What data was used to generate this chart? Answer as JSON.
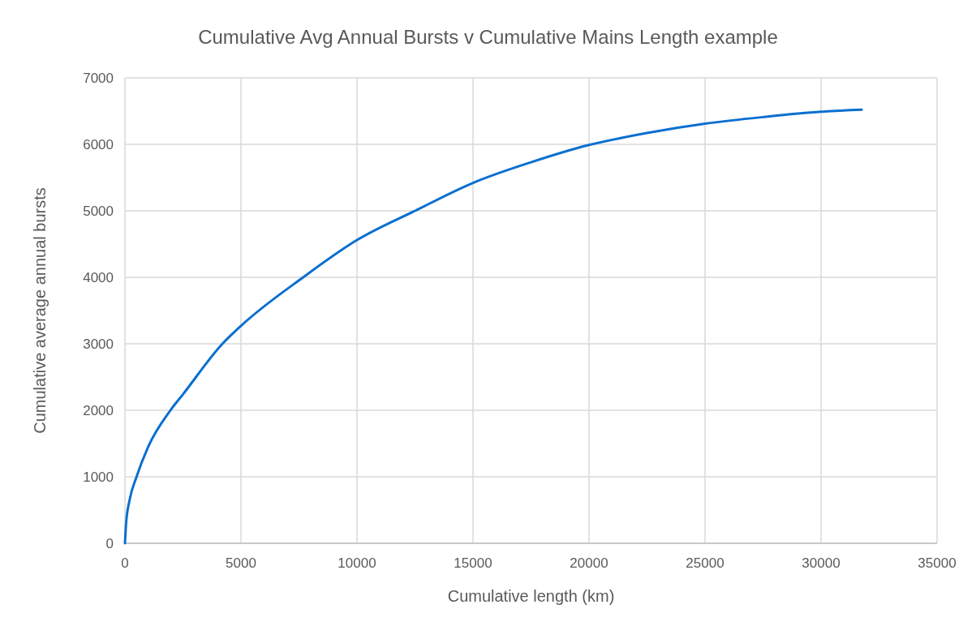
{
  "chart_data": {
    "type": "line",
    "title": "Cumulative Avg Annual Bursts v Cumulative Mains Length example",
    "xlabel": "Cumulative length (km)",
    "ylabel": "Cumulative average annual bursts",
    "series": [
      {
        "color": "#0a6fd0",
        "x": [
          0,
          50,
          200,
          500,
          1000,
          1960,
          2500,
          4200,
          5000,
          7680,
          10000,
          12500,
          15000,
          17500,
          20000,
          22500,
          25000,
          27500,
          30000,
          31750
        ],
        "values": [
          0,
          300,
          650,
          1000,
          1450,
          2000,
          2240,
          3000,
          3270,
          4000,
          4560,
          5000,
          5420,
          5730,
          5990,
          6170,
          6310,
          6410,
          6490,
          6520
        ]
      }
    ],
    "xlim": [
      0,
      35000
    ],
    "xticks": [
      0,
      5000,
      10000,
      15000,
      20000,
      25000,
      30000,
      35000
    ],
    "ylim": [
      0,
      7000
    ],
    "yticks": [
      0,
      1000,
      2000,
      3000,
      4000,
      5000,
      6000,
      7000
    ],
    "grid": true,
    "marker": "none",
    "line_style": "solid"
  }
}
